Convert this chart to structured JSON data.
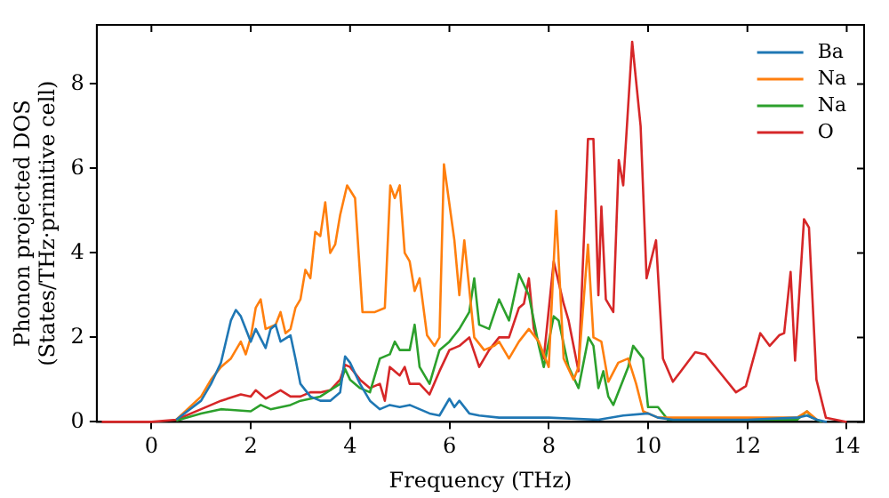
{
  "chart_data": {
    "type": "line",
    "xlabel": "Frequency (THz)",
    "ylabel": "Phonon projected DOS\n(States/THz·primitive cell)",
    "xlim": [
      -1.1,
      14.35
    ],
    "ylim": [
      0,
      9.4
    ],
    "xticks": [
      0,
      2,
      4,
      6,
      8,
      10,
      12,
      14
    ],
    "yticks": [
      0,
      2,
      4,
      6,
      8
    ],
    "legend": "top right",
    "grid": false,
    "marker": "none",
    "line_style": "solid",
    "series": [
      {
        "name": "Ba",
        "color": "#1f77b4",
        "x": [
          0.5,
          1.0,
          1.2,
          1.4,
          1.6,
          1.7,
          1.8,
          2.0,
          2.1,
          2.3,
          2.4,
          2.5,
          2.6,
          2.8,
          2.9,
          3.0,
          3.2,
          3.4,
          3.6,
          3.8,
          3.9,
          4.0,
          4.2,
          4.4,
          4.6,
          4.8,
          5.0,
          5.2,
          5.4,
          5.6,
          5.8,
          6.0,
          6.1,
          6.2,
          6.4,
          6.6,
          7.0,
          8.0,
          9.0,
          9.5,
          10.0,
          10.2,
          10.5,
          11.0,
          12.0,
          13.0,
          13.2,
          13.4,
          13.6
        ],
        "values": [
          0.05,
          0.5,
          0.9,
          1.4,
          2.4,
          2.65,
          2.5,
          1.9,
          2.2,
          1.75,
          2.2,
          2.3,
          1.9,
          2.05,
          1.5,
          0.9,
          0.6,
          0.5,
          0.5,
          0.7,
          1.55,
          1.4,
          0.9,
          0.5,
          0.3,
          0.4,
          0.35,
          0.4,
          0.3,
          0.2,
          0.15,
          0.55,
          0.35,
          0.5,
          0.2,
          0.15,
          0.1,
          0.1,
          0.05,
          0.15,
          0.2,
          0.1,
          0.05,
          0.05,
          0.05,
          0.1,
          0.15,
          0.05,
          0
        ]
      },
      {
        "name": "Na",
        "color": "#ff7f0e",
        "x": [
          0.5,
          1.0,
          1.2,
          1.4,
          1.6,
          1.8,
          1.9,
          2.0,
          2.1,
          2.2,
          2.3,
          2.5,
          2.6,
          2.7,
          2.8,
          2.9,
          3.0,
          3.1,
          3.2,
          3.3,
          3.4,
          3.5,
          3.6,
          3.7,
          3.8,
          3.94,
          4.1,
          4.25,
          4.5,
          4.7,
          4.81,
          4.9,
          5.0,
          5.1,
          5.2,
          5.3,
          5.4,
          5.55,
          5.7,
          5.8,
          5.89,
          6.1,
          6.2,
          6.3,
          6.5,
          6.7,
          6.9,
          7.0,
          7.2,
          7.4,
          7.6,
          7.8,
          8.0,
          8.15,
          8.3,
          8.5,
          8.6,
          8.79,
          8.9,
          9.06,
          9.2,
          9.4,
          9.6,
          9.76,
          9.9,
          10.2,
          13.0,
          13.2,
          13.4
        ],
        "values": [
          0.05,
          0.6,
          1.0,
          1.3,
          1.5,
          1.9,
          1.6,
          2.0,
          2.7,
          2.9,
          2.2,
          2.3,
          2.6,
          2.1,
          2.2,
          2.7,
          2.9,
          3.6,
          3.4,
          4.5,
          4.4,
          5.2,
          4.0,
          4.2,
          4.9,
          5.6,
          5.3,
          2.6,
          2.6,
          2.7,
          5.6,
          5.3,
          5.6,
          4.0,
          3.8,
          3.1,
          3.4,
          2.05,
          1.8,
          2.0,
          6.1,
          4.3,
          3.0,
          4.3,
          2.0,
          1.7,
          1.8,
          1.9,
          1.5,
          1.9,
          2.2,
          1.9,
          1.3,
          5.0,
          1.5,
          1.0,
          1.3,
          4.2,
          2.0,
          1.9,
          0.95,
          1.4,
          1.5,
          0.9,
          0.25,
          0.1,
          0.1,
          0.25,
          0.05
        ]
      },
      {
        "name": "Na",
        "color": "#2ca02c",
        "x": [
          0.5,
          1.0,
          1.4,
          2.0,
          2.2,
          2.4,
          2.8,
          3.0,
          3.4,
          3.8,
          3.9,
          4.0,
          4.2,
          4.4,
          4.6,
          4.8,
          4.9,
          5.0,
          5.2,
          5.3,
          5.4,
          5.6,
          5.8,
          6.0,
          6.2,
          6.4,
          6.5,
          6.6,
          6.8,
          7.0,
          7.2,
          7.4,
          7.6,
          7.8,
          7.9,
          8.1,
          8.2,
          8.4,
          8.6,
          8.7,
          8.8,
          8.9,
          9.0,
          9.1,
          9.2,
          9.3,
          9.5,
          9.6,
          9.7,
          9.9,
          10.0,
          10.2,
          10.4,
          11.0,
          13.0,
          13.2,
          13.3,
          13.5
        ],
        "values": [
          0.03,
          0.2,
          0.3,
          0.25,
          0.4,
          0.3,
          0.4,
          0.5,
          0.6,
          0.9,
          1.25,
          1.0,
          0.8,
          0.7,
          1.5,
          1.6,
          1.9,
          1.7,
          1.7,
          2.3,
          1.3,
          0.9,
          1.7,
          1.9,
          2.2,
          2.6,
          3.4,
          2.3,
          2.2,
          2.9,
          2.4,
          3.5,
          3.0,
          1.8,
          1.3,
          2.5,
          2.4,
          1.3,
          0.8,
          1.4,
          2.0,
          1.8,
          0.8,
          1.2,
          0.6,
          0.4,
          1.0,
          1.3,
          1.8,
          1.5,
          0.35,
          0.35,
          0.05,
          0.05,
          0.05,
          0.25,
          0.1,
          0
        ]
      },
      {
        "name": "O",
        "color": "#d62728",
        "x": [
          -1,
          0,
          0.5,
          1.0,
          1.4,
          1.8,
          2.0,
          2.1,
          2.3,
          2.6,
          2.8,
          3.0,
          3.2,
          3.4,
          3.6,
          3.8,
          3.9,
          4.0,
          4.2,
          4.4,
          4.6,
          4.7,
          4.8,
          5.0,
          5.1,
          5.2,
          5.4,
          5.6,
          5.8,
          6.0,
          6.2,
          6.4,
          6.6,
          6.8,
          7.0,
          7.2,
          7.4,
          7.5,
          7.6,
          7.7,
          7.9,
          8.1,
          8.3,
          8.4,
          8.6,
          8.79,
          8.9,
          9.0,
          9.06,
          9.15,
          9.3,
          9.41,
          9.5,
          9.68,
          9.85,
          9.97,
          10.16,
          10.3,
          10.5,
          10.95,
          11.15,
          11.46,
          11.77,
          11.97,
          12.26,
          12.45,
          12.64,
          12.74,
          12.87,
          12.96,
          13.14,
          13.24,
          13.39,
          13.58,
          14.0
        ],
        "values": [
          0,
          0,
          0.05,
          0.3,
          0.5,
          0.65,
          0.6,
          0.75,
          0.55,
          0.75,
          0.6,
          0.6,
          0.7,
          0.7,
          0.75,
          1.0,
          1.35,
          1.3,
          1.0,
          0.8,
          0.9,
          0.5,
          1.3,
          1.1,
          1.3,
          0.9,
          0.9,
          0.65,
          1.2,
          1.7,
          1.8,
          2.0,
          1.3,
          1.7,
          2.0,
          2.0,
          2.7,
          2.8,
          3.4,
          2.2,
          1.5,
          3.8,
          2.8,
          2.4,
          1.2,
          6.7,
          6.7,
          3.0,
          5.1,
          2.9,
          2.6,
          6.2,
          5.6,
          9.0,
          7.0,
          3.4,
          4.3,
          1.5,
          0.95,
          1.65,
          1.6,
          1.15,
          0.7,
          0.85,
          2.1,
          1.8,
          2.05,
          2.1,
          3.55,
          1.45,
          4.8,
          4.6,
          1.0,
          0.1,
          0
        ]
      }
    ]
  }
}
